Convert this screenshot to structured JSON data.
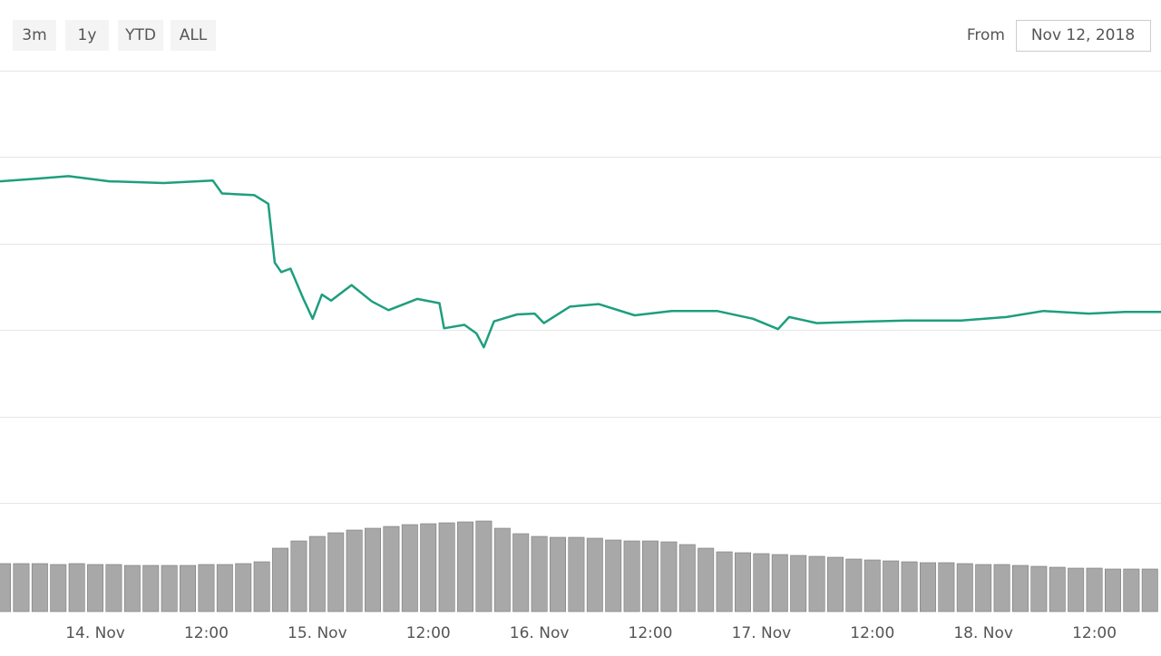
{
  "toolbar": {
    "ranges": [
      "3m",
      "1y",
      "YTD",
      "ALL"
    ],
    "from_label": "From",
    "from_date": "Nov 12, 2018"
  },
  "chart_data": [
    {
      "type": "line",
      "x": [
        -10.3,
        -6.4,
        -2.9,
        1.5,
        7.4,
        12.7,
        13.7,
        17.2,
        18.7,
        19.4,
        20.1,
        21.1,
        22.5,
        23.5,
        24.5,
        25.5,
        27.7,
        29.9,
        31.7,
        34.8,
        37.2,
        37.7,
        39.9,
        41.2,
        42.0,
        43.1,
        45.6,
        47.5,
        48.5,
        51.3,
        54.4,
        58.3,
        62.3,
        67.2,
        71.1,
        73.8,
        75.0,
        78.0,
        83.8,
        87.7,
        93.6,
        98.5,
        102.5,
        107.4,
        111.3,
        115.2
      ],
      "series": [
        {
          "color": "#1e9e7e",
          "values": [
            3.72,
            3.75,
            3.78,
            3.72,
            3.7,
            3.73,
            3.58,
            3.56,
            3.46,
            2.78,
            2.67,
            2.71,
            2.36,
            2.13,
            2.41,
            2.34,
            2.52,
            2.33,
            2.23,
            2.36,
            2.31,
            2.02,
            2.06,
            1.96,
            1.8,
            2.1,
            2.18,
            2.19,
            2.08,
            2.27,
            2.3,
            2.17,
            2.22,
            2.22,
            2.13,
            2.01,
            2.15,
            2.08,
            2.1,
            2.11,
            2.11,
            2.15,
            2.22,
            2.19,
            2.21,
            2.21
          ]
        }
      ],
      "xlim": [
        -10.3,
        115.2
      ],
      "ylim": [
        0,
        5
      ],
      "yticks": [
        0,
        1,
        2,
        3,
        4,
        5
      ],
      "grid": true
    },
    {
      "type": "bar",
      "x": [
        -10,
        -8,
        -6,
        -4,
        -2,
        0,
        2,
        4,
        6,
        8,
        10,
        12,
        14,
        16,
        18,
        20,
        22,
        24,
        26,
        28,
        30,
        32,
        34,
        36,
        38,
        40,
        42,
        44,
        46,
        48,
        50,
        52,
        54,
        56,
        58,
        60,
        62,
        64,
        66,
        68,
        70,
        72,
        74,
        76,
        78,
        80,
        82,
        84,
        86,
        88,
        90,
        92,
        94,
        96,
        98,
        100,
        102,
        104,
        106,
        108,
        110,
        112,
        114
      ],
      "values": [
        5.3,
        5.3,
        5.3,
        5.2,
        5.3,
        5.2,
        5.2,
        5.1,
        5.1,
        5.1,
        5.1,
        5.2,
        5.2,
        5.3,
        5.5,
        7.0,
        7.8,
        8.3,
        8.7,
        9.0,
        9.2,
        9.4,
        9.6,
        9.7,
        9.8,
        9.9,
        10.0,
        9.2,
        8.6,
        8.3,
        8.2,
        8.2,
        8.1,
        7.9,
        7.8,
        7.8,
        7.7,
        7.4,
        7.0,
        6.6,
        6.5,
        6.4,
        6.3,
        6.2,
        6.1,
        6.0,
        5.8,
        5.7,
        5.6,
        5.5,
        5.4,
        5.4,
        5.3,
        5.2,
        5.2,
        5.1,
        5.0,
        4.9,
        4.8,
        4.8,
        4.7,
        4.7,
        4.7
      ],
      "color": "#a8a8a8",
      "xlim": [
        -10.3,
        115.2
      ],
      "ylim": [
        0,
        12
      ],
      "xticks": [
        {
          "value": 0,
          "label": "14. Nov"
        },
        {
          "value": 12,
          "label": "12:00"
        },
        {
          "value": 24,
          "label": "15. Nov"
        },
        {
          "value": 36,
          "label": "12:00"
        },
        {
          "value": 48,
          "label": "16. Nov"
        },
        {
          "value": 60,
          "label": "12:00"
        },
        {
          "value": 72,
          "label": "17. Nov"
        },
        {
          "value": 84,
          "label": "12:00"
        },
        {
          "value": 96,
          "label": "18. Nov"
        },
        {
          "value": 108,
          "label": "12:00"
        }
      ]
    }
  ]
}
